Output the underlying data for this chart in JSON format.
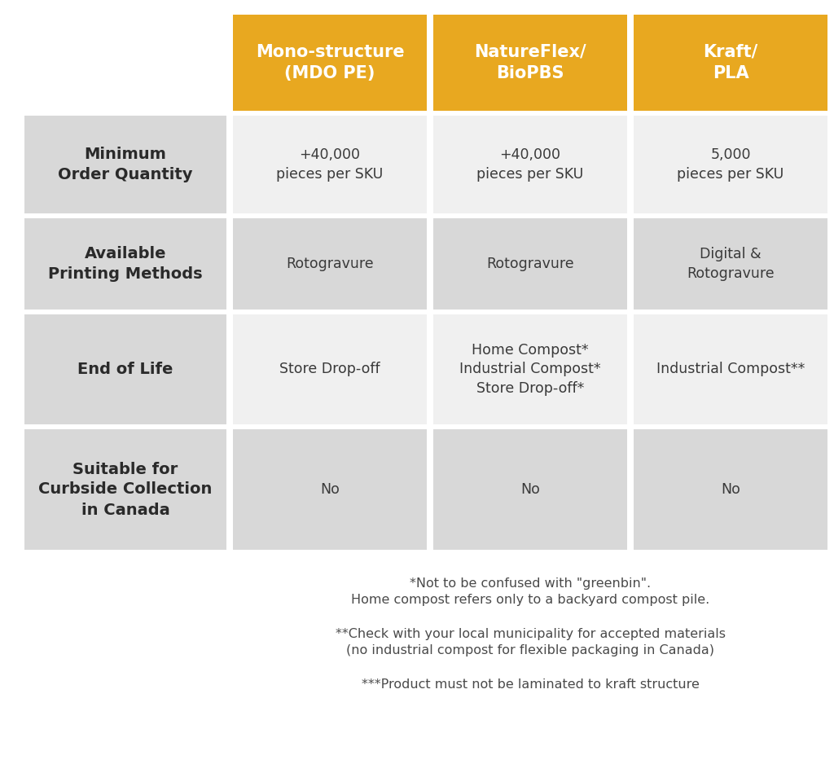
{
  "background_color": "#ffffff",
  "header_bg_color": "#E8A820",
  "row_bg_light": "#D8D8D8",
  "row_bg_white": "#f0f0f0",
  "header_text_color": "#ffffff",
  "row_label_color": "#2a2a2a",
  "cell_text_color": "#3a3a3a",
  "footnote_color": "#4a4a4a",
  "headers": [
    "Mono-structure\n(MDO PE)",
    "NatureFlex/\nBioPBS",
    "Kraft/\nPLA"
  ],
  "row_labels": [
    "Minimum\nOrder Quantity",
    "Available\nPrinting Methods",
    "End of Life",
    "Suitable for\nCurbside Collection\nin Canada"
  ],
  "cells": [
    [
      "+40,000\npieces per SKU",
      "+40,000\npieces per SKU",
      "5,000\npieces per SKU"
    ],
    [
      "Rotogravure",
      "Rotogravure",
      "Digital &\nRotogravure"
    ],
    [
      "Store Drop-off",
      "Home Compost*\nIndustrial Compost*\nStore Drop-off*",
      "Industrial Compost**"
    ],
    [
      "No",
      "No",
      "No"
    ]
  ],
  "row_bg_pattern": [
    "white",
    "light",
    "white",
    "light"
  ],
  "footnote_groups": [
    [
      "*Not to be confused with \"greenbin\".",
      "Home compost refers only to a backyard compost pile."
    ],
    [
      "**Check with your local municipality for accepted materials",
      "(no industrial compost for flexible packaging in Canada)"
    ],
    [
      "***Product must not be laminated to kraft structure"
    ]
  ]
}
